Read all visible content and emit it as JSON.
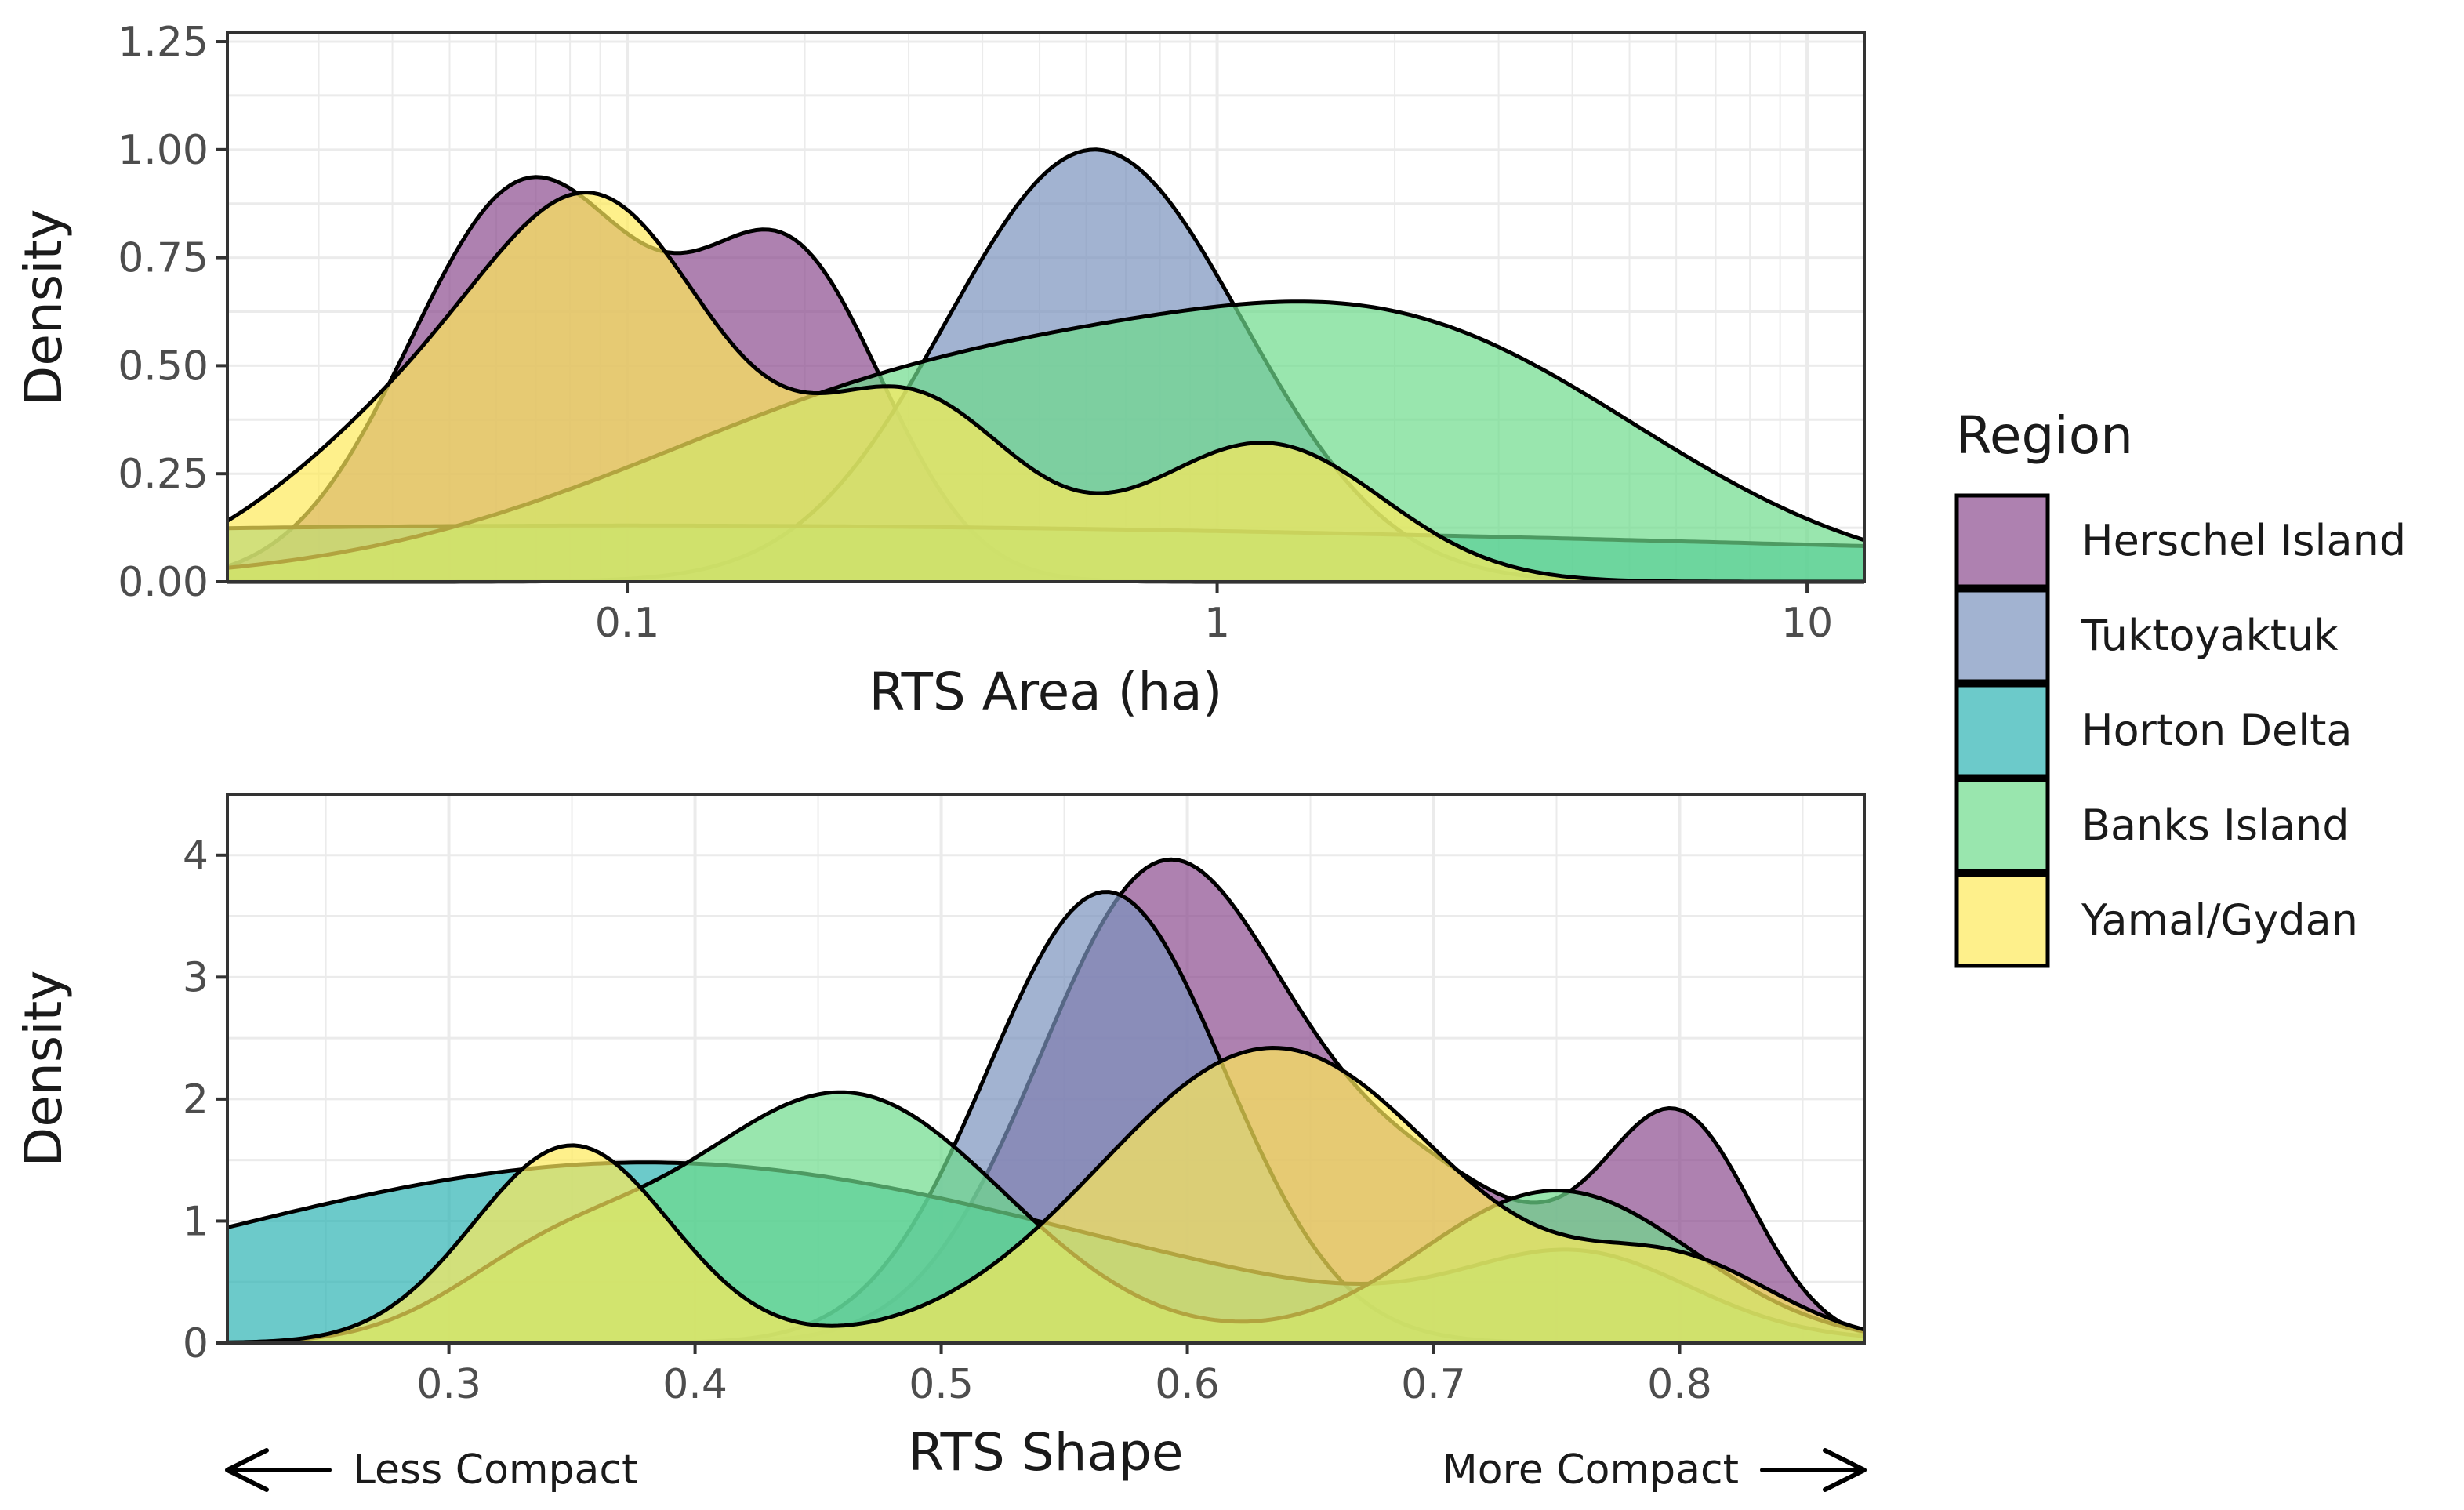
{
  "legend": {
    "title": "Region",
    "entries": [
      {
        "name": "Herschel Island",
        "color": "#8B4C8E"
      },
      {
        "name": "Tuktoyaktuk",
        "color": "#7A93BE"
      },
      {
        "name": "Horton Delta",
        "color": "#2EB4B4"
      },
      {
        "name": "Banks Island",
        "color": "#6EDC8C"
      },
      {
        "name": "Yamal/Gydan",
        "color": "#FDE95A"
      }
    ]
  },
  "annotations": {
    "left": "Less Compact",
    "right": "More Compact"
  },
  "chart_data": [
    {
      "type": "area",
      "subtype": "density",
      "title": "",
      "xlabel": "RTS Area (ha)",
      "ylabel": "Density",
      "xscale": "log10",
      "xlim": [
        0.021,
        12.5
      ],
      "ylim": [
        0,
        1.27
      ],
      "xticks": [
        0.1,
        1,
        10
      ],
      "xtick_labels": [
        "0.1",
        "1",
        "10"
      ],
      "yticks": [
        0,
        0.25,
        0.5,
        0.75,
        1.0,
        1.25
      ],
      "ytick_labels": [
        "0.00",
        "0.25",
        "0.50",
        "0.75",
        "1.00",
        "1.25"
      ],
      "grid": true,
      "legend_position": "right",
      "series": [
        {
          "name": "Herschel Island",
          "components": [
            [
              0.068,
              0.2,
              0.92
            ],
            [
              0.19,
              0.16,
              0.72
            ]
          ]
        },
        {
          "name": "Tuktoyaktuk",
          "components": [
            [
              0.62,
              0.25,
              1.0
            ]
          ]
        },
        {
          "name": "Horton Delta",
          "components": [
            [
              0.1,
              2.2,
              0.13
            ]
          ]
        },
        {
          "name": "Banks Island",
          "components": [
            [
              0.4,
              0.55,
              0.48
            ],
            [
              2.4,
              0.4,
              0.42
            ]
          ]
        },
        {
          "name": "Yamal/Gydan",
          "components": [
            [
              0.048,
              0.25,
              0.39
            ],
            [
              0.095,
              0.19,
              0.68
            ],
            [
              0.3,
              0.18,
              0.42
            ],
            [
              1.2,
              0.2,
              0.32
            ]
          ]
        }
      ]
    },
    {
      "type": "area",
      "subtype": "density",
      "title": "",
      "xlabel": "RTS Shape",
      "ylabel": "Density",
      "xscale": "linear",
      "xlim": [
        0.21,
        0.875
      ],
      "ylim": [
        0,
        4.5
      ],
      "xticks": [
        0.3,
        0.4,
        0.5,
        0.6,
        0.7,
        0.8
      ],
      "xtick_labels": [
        "0.3",
        "0.4",
        "0.5",
        "0.6",
        "0.7",
        "0.8"
      ],
      "yticks": [
        0,
        1,
        2,
        3,
        4
      ],
      "ytick_labels": [
        "0",
        "1",
        "2",
        "3",
        "4"
      ],
      "grid": true,
      "legend_position": "right",
      "series": [
        {
          "name": "Herschel Island",
          "components": [
            [
              0.59,
              0.05,
              3.85
            ],
            [
              0.8,
              0.03,
              1.75
            ],
            [
              0.7,
              0.05,
              1.2
            ]
          ]
        },
        {
          "name": "Tuktoyaktuk",
          "components": [
            [
              0.567,
              0.048,
              3.7
            ]
          ]
        },
        {
          "name": "Horton Delta",
          "components": [
            [
              0.38,
              0.18,
              1.48
            ],
            [
              0.76,
              0.045,
              0.6
            ]
          ]
        },
        {
          "name": "Banks Island",
          "components": [
            [
              0.46,
              0.065,
              2.05
            ],
            [
              0.75,
              0.055,
              1.25
            ],
            [
              0.34,
              0.04,
              0.55
            ]
          ]
        },
        {
          "name": "Yamal/Gydan",
          "components": [
            [
              0.35,
              0.04,
              1.62
            ],
            [
              0.635,
              0.07,
              2.42
            ],
            [
              0.8,
              0.04,
              0.6
            ]
          ]
        }
      ]
    }
  ]
}
